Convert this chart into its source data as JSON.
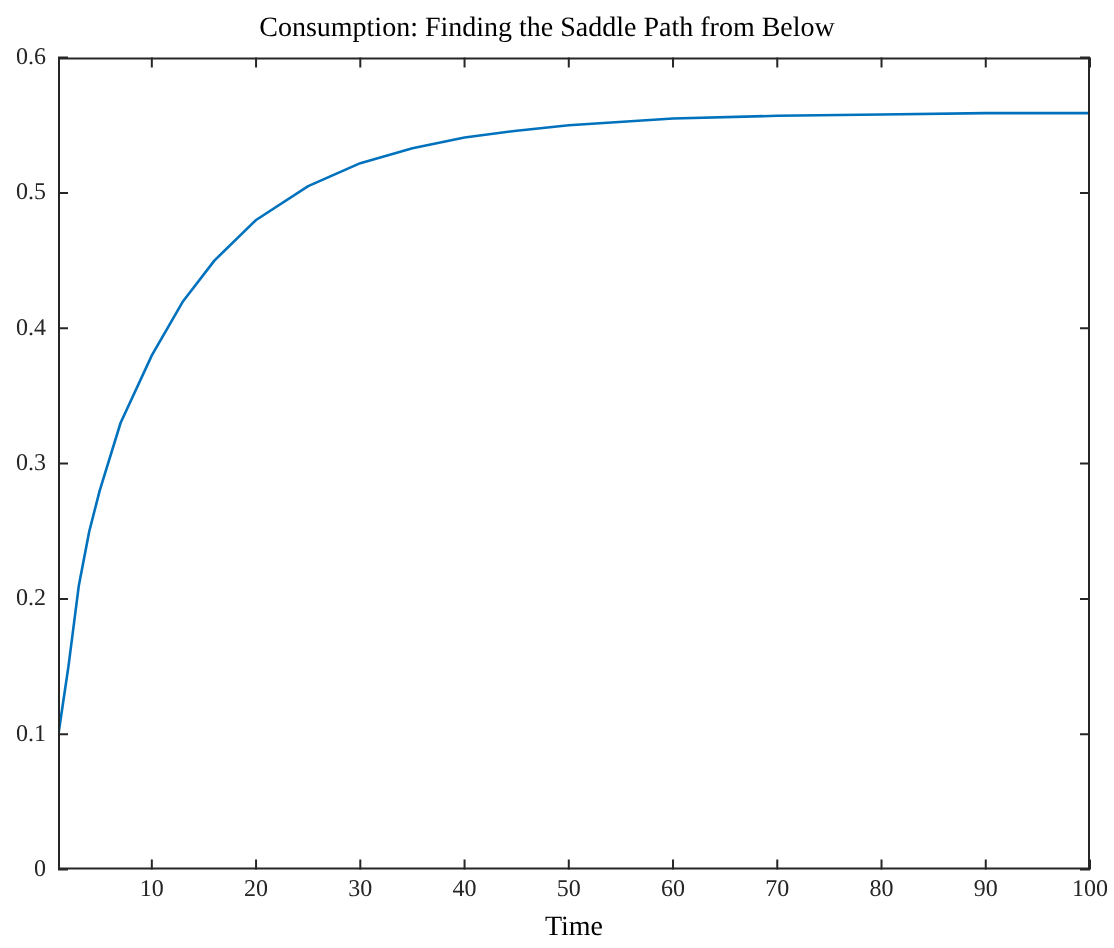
{
  "chart_data": {
    "type": "line",
    "title": "Consumption: Finding the Saddle Path from Below",
    "xlabel": "Time",
    "x": [
      1,
      2,
      3,
      4,
      5,
      7,
      10,
      13,
      16,
      20,
      25,
      30,
      35,
      40,
      45,
      50,
      60,
      70,
      80,
      90,
      100
    ],
    "series": [
      {
        "color": "#0072bd",
        "values": [
          0.098,
          0.15,
          0.21,
          0.25,
          0.28,
          0.33,
          0.38,
          0.42,
          0.45,
          0.48,
          0.505,
          0.522,
          0.533,
          0.541,
          0.546,
          0.55,
          0.555,
          0.557,
          0.558,
          0.559,
          0.559
        ]
      }
    ],
    "xlim": [
      1,
      100
    ],
    "xticks": [
      10,
      20,
      30,
      40,
      50,
      60,
      70,
      80,
      90,
      100
    ],
    "ylim": [
      0,
      0.6
    ],
    "yticks": [
      0,
      0.1,
      0.2,
      0.3,
      0.4,
      0.5,
      0.6
    ],
    "grid": false,
    "legend": false,
    "marker": "none",
    "line_style": "solid"
  }
}
